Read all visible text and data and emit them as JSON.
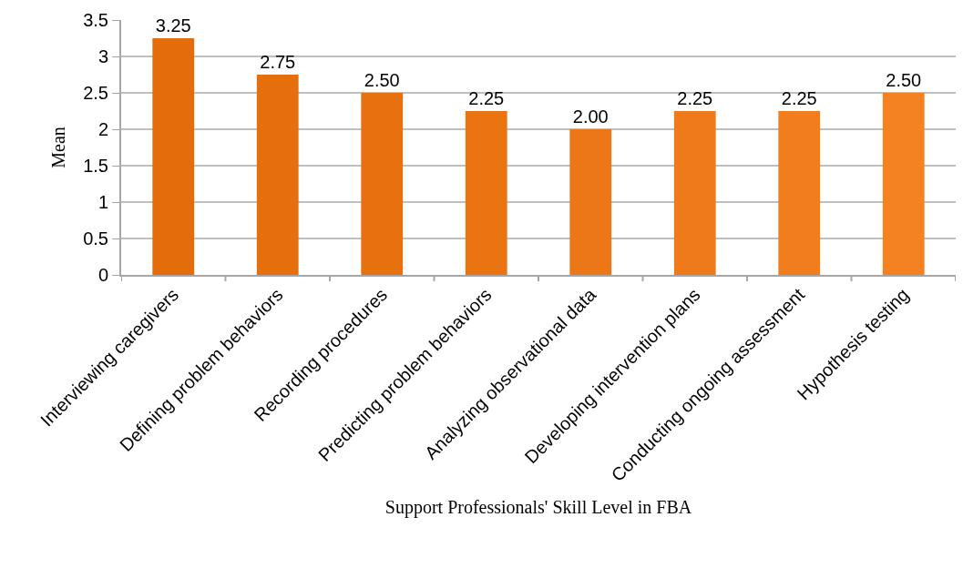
{
  "chart_data": {
    "type": "bar",
    "categories": [
      "Interviewing caregivers",
      "Defining problem behaviors",
      "Recording procedures",
      "Predicting problem behaviors",
      "Analyzing observational data",
      "Developing intervention plans",
      "Conducting ongoing assessment",
      "Hypothesis testing"
    ],
    "values": [
      3.25,
      2.75,
      2.5,
      2.25,
      2.0,
      2.25,
      2.25,
      2.5
    ],
    "value_labels": [
      "3.25",
      "2.75",
      "2.50",
      "2.25",
      "2.00",
      "2.25",
      "2.25",
      "2.50"
    ],
    "colors": [
      "#e46c0a",
      "#e66e0c",
      "#e8710f",
      "#ea7412",
      "#ec7716",
      "#ef7a19",
      "#f27d1c",
      "#f58220"
    ],
    "xlabel": "Support Professionals' Skill Level in FBA",
    "ylabel": "Mean",
    "ylim": [
      0,
      3.5
    ],
    "yticks": [
      0,
      0.5,
      1,
      1.5,
      2,
      2.5,
      3,
      3.5
    ],
    "grid": "y",
    "legend": false
  }
}
